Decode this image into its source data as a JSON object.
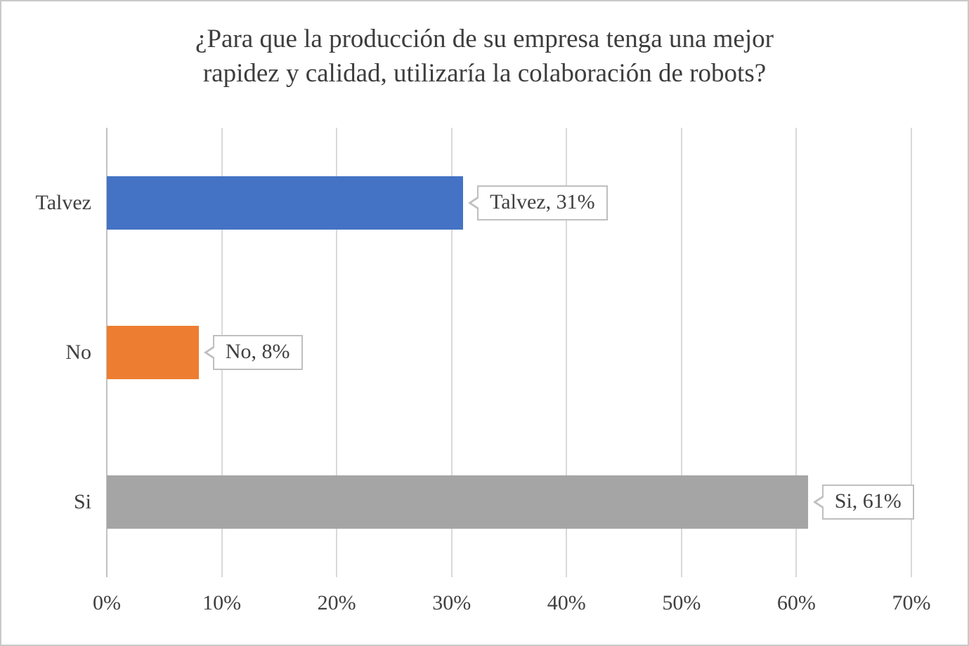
{
  "chart_data": {
    "type": "bar",
    "orientation": "horizontal",
    "title": "¿Para que la producción de su empresa tenga una mejor rapidez y calidad, utilizaría la colaboración de robots?",
    "title_lines": [
      "¿Para que la producción de su empresa tenga una mejor",
      "rapidez y calidad, utilizaría la colaboración de robots?"
    ],
    "categories": [
      "Talvez",
      "No",
      "Si"
    ],
    "values": [
      31,
      8,
      61
    ],
    "unit": "%",
    "data_labels": [
      "Talvez, 31%",
      "No, 8%",
      "Si, 61%"
    ],
    "colors": [
      "#4472C4",
      "#ED7D31",
      "#A5A5A5"
    ],
    "xlim": [
      0,
      70
    ],
    "x_tick_values": [
      0,
      10,
      20,
      30,
      40,
      50,
      60,
      70
    ],
    "x_tick_labels": [
      "0%",
      "10%",
      "20%",
      "30%",
      "40%",
      "50%",
      "60%",
      "70%"
    ],
    "grid": true,
    "legend": "none",
    "accent_colors": {
      "gridline": "#D9D9D9",
      "callout_border": "#BFBFBF",
      "text": "#404040"
    }
  }
}
